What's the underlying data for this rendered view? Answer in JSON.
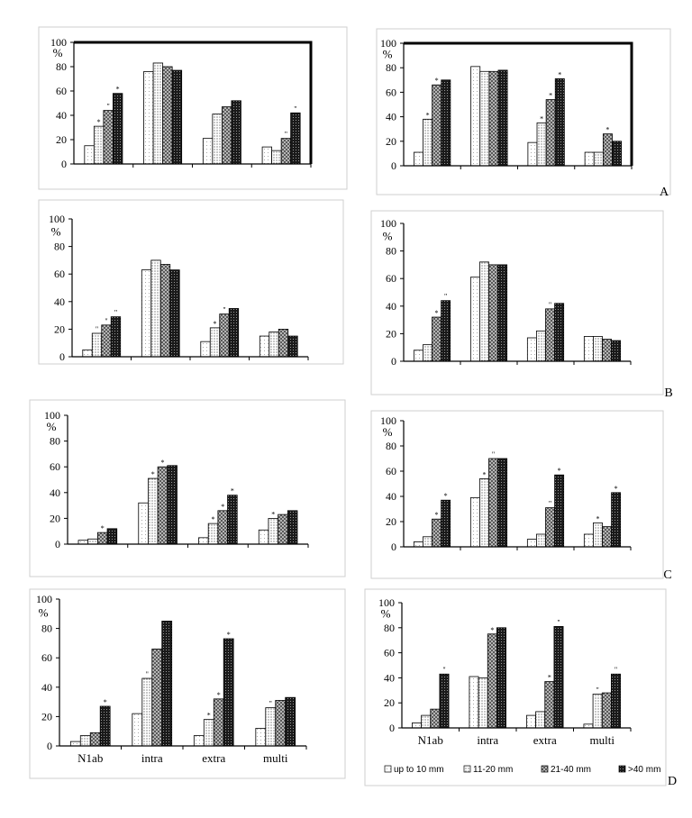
{
  "panel_labels": [
    "A",
    "B",
    "C",
    "D"
  ],
  "chart_data": [
    {
      "type": "bar",
      "panel": "A",
      "side": "left",
      "ylabel": "%",
      "ylim": [
        0,
        100
      ],
      "yticks": [
        0,
        20,
        40,
        60,
        80,
        100
      ],
      "categories": [
        "N1ab",
        "intra",
        "extra",
        "multi"
      ],
      "show_category_labels": false,
      "series": [
        {
          "name": "up to 10 mm",
          "values": [
            15,
            76,
            21,
            14
          ]
        },
        {
          "name": "11-20 mm",
          "values": [
            31,
            83,
            41,
            11
          ]
        },
        {
          "name": "21-40 mm",
          "values": [
            44,
            80,
            47,
            21
          ]
        },
        {
          "name": ">40 mm",
          "values": [
            58,
            77,
            52,
            42
          ]
        }
      ],
      "marks": [
        [
          "",
          "",
          "",
          ""
        ],
        [
          "*",
          "",
          "",
          ""
        ],
        [
          "\"",
          "",
          "",
          "\""
        ],
        [
          "*",
          "",
          "",
          "\""
        ]
      ]
    },
    {
      "type": "bar",
      "panel": "A",
      "side": "right",
      "ylabel": "%",
      "ylim": [
        0,
        100
      ],
      "yticks": [
        0,
        20,
        40,
        60,
        80,
        100
      ],
      "categories": [
        "N1ab",
        "intra",
        "extra",
        "multi"
      ],
      "show_category_labels": false,
      "series": [
        {
          "name": "up to 10 mm",
          "values": [
            11,
            81,
            19,
            11
          ]
        },
        {
          "name": "11-20 mm",
          "values": [
            38,
            77,
            35,
            11
          ]
        },
        {
          "name": "21-40 mm",
          "values": [
            66,
            77,
            54,
            26
          ]
        },
        {
          "name": ">40 mm",
          "values": [
            70,
            78,
            71,
            20
          ]
        }
      ],
      "marks": [
        [
          "",
          "",
          "",
          ""
        ],
        [
          "*",
          "",
          "*",
          ""
        ],
        [
          "*",
          "",
          "*",
          "*"
        ],
        [
          "",
          "",
          "*",
          ""
        ]
      ]
    },
    {
      "type": "bar",
      "panel": "B",
      "side": "left",
      "ylabel": "%",
      "ylim": [
        0,
        100
      ],
      "yticks": [
        0,
        20,
        40,
        60,
        80,
        100
      ],
      "categories": [
        "N1ab",
        "intra",
        "extra",
        "multi"
      ],
      "show_category_labels": false,
      "series": [
        {
          "name": "up to 10 mm",
          "values": [
            5,
            63,
            11,
            15
          ]
        },
        {
          "name": "11-20 mm",
          "values": [
            17,
            70,
            21,
            18
          ]
        },
        {
          "name": "21-40 mm",
          "values": [
            23,
            67,
            31,
            20
          ]
        },
        {
          "name": ">40 mm",
          "values": [
            29,
            63,
            35,
            15
          ]
        }
      ],
      "marks": [
        [
          "",
          "",
          "",
          ""
        ],
        [
          "\"",
          "",
          "*",
          ""
        ],
        [
          "\"",
          "",
          "\"",
          ""
        ],
        [
          "\"",
          "",
          "",
          ""
        ]
      ]
    },
    {
      "type": "bar",
      "panel": "B",
      "side": "right",
      "ylabel": "%",
      "ylim": [
        0,
        100
      ],
      "yticks": [
        0,
        20,
        40,
        60,
        80,
        100
      ],
      "categories": [
        "N1ab",
        "intra",
        "extra",
        "multi"
      ],
      "show_category_labels": false,
      "series": [
        {
          "name": "up to 10 mm",
          "values": [
            8,
            61,
            17,
            18
          ]
        },
        {
          "name": "11-20 mm",
          "values": [
            12,
            72,
            22,
            18
          ]
        },
        {
          "name": "21-40 mm",
          "values": [
            32,
            70,
            38,
            16
          ]
        },
        {
          "name": ">40 mm",
          "values": [
            44,
            70,
            42,
            15
          ]
        }
      ],
      "marks": [
        [
          "",
          "",
          "",
          ""
        ],
        [
          "",
          "",
          "",
          ""
        ],
        [
          "*",
          "",
          "\"",
          ""
        ],
        [
          "\"",
          "",
          "",
          ""
        ]
      ]
    },
    {
      "type": "bar",
      "panel": "C",
      "side": "left",
      "ylabel": "%",
      "ylim": [
        0,
        100
      ],
      "yticks": [
        0,
        20,
        40,
        60,
        80,
        100
      ],
      "categories": [
        "N1ab",
        "intra",
        "extra",
        "multi"
      ],
      "show_category_labels": false,
      "series": [
        {
          "name": "up to 10 mm",
          "values": [
            3,
            32,
            5,
            11
          ]
        },
        {
          "name": "11-20 mm",
          "values": [
            4,
            51,
            16,
            20
          ]
        },
        {
          "name": "21-40 mm",
          "values": [
            9,
            60,
            26,
            23
          ]
        },
        {
          "name": ">40 mm",
          "values": [
            12,
            61,
            38,
            26
          ]
        }
      ],
      "marks": [
        [
          "",
          "",
          "",
          ""
        ],
        [
          "",
          "*",
          "*",
          "*"
        ],
        [
          "*",
          "*",
          "*",
          ""
        ],
        [
          "",
          "",
          "*",
          ""
        ]
      ]
    },
    {
      "type": "bar",
      "panel": "C",
      "side": "right",
      "ylabel": "%",
      "ylim": [
        0,
        100
      ],
      "yticks": [
        0,
        20,
        40,
        60,
        80,
        100
      ],
      "categories": [
        "N1ab",
        "intra",
        "extra",
        "multi"
      ],
      "show_category_labels": false,
      "series": [
        {
          "name": "up to 10 mm",
          "values": [
            4,
            39,
            6,
            10
          ]
        },
        {
          "name": "11-20 mm",
          "values": [
            8,
            54,
            10,
            19
          ]
        },
        {
          "name": "21-40 mm",
          "values": [
            22,
            70,
            31,
            16
          ]
        },
        {
          "name": ">40 mm",
          "values": [
            37,
            70,
            57,
            43
          ]
        }
      ],
      "marks": [
        [
          "",
          "",
          "",
          ""
        ],
        [
          "",
          "*",
          "",
          "*"
        ],
        [
          "*",
          "\"",
          "\"",
          ""
        ],
        [
          "*",
          "",
          "*",
          "*"
        ]
      ]
    },
    {
      "type": "bar",
      "panel": "D",
      "side": "left",
      "ylabel": "%",
      "ylim": [
        0,
        100
      ],
      "yticks": [
        0,
        20,
        40,
        60,
        80,
        100
      ],
      "categories": [
        "N1ab",
        "intra",
        "extra",
        "multi"
      ],
      "show_category_labels": true,
      "series": [
        {
          "name": "up to 10 mm",
          "values": [
            3,
            22,
            7,
            12
          ]
        },
        {
          "name": "11-20 mm",
          "values": [
            7,
            46,
            18,
            26
          ]
        },
        {
          "name": "21-40 mm",
          "values": [
            9,
            66,
            32,
            31
          ]
        },
        {
          "name": ">40 mm",
          "values": [
            27,
            85,
            73,
            33
          ]
        }
      ],
      "marks": [
        [
          "",
          "",
          "",
          ""
        ],
        [
          "",
          "\"",
          "*",
          "\""
        ],
        [
          "",
          "",
          "*",
          ""
        ],
        [
          "*",
          "",
          "*",
          ""
        ]
      ]
    },
    {
      "type": "bar",
      "panel": "D",
      "side": "right",
      "ylabel": "%",
      "ylim": [
        0,
        100
      ],
      "yticks": [
        0,
        20,
        40,
        60,
        80,
        100
      ],
      "categories": [
        "N1ab",
        "intra",
        "extra",
        "multi"
      ],
      "show_category_labels": true,
      "series": [
        {
          "name": "up to 10 mm",
          "values": [
            4,
            41,
            10,
            3
          ]
        },
        {
          "name": "11-20 mm",
          "values": [
            10,
            40,
            13,
            27
          ]
        },
        {
          "name": "21-40 mm",
          "values": [
            15,
            75,
            37,
            28
          ]
        },
        {
          "name": ">40 mm",
          "values": [
            43,
            80,
            81,
            43
          ]
        }
      ],
      "marks": [
        [
          "",
          "",
          "",
          ""
        ],
        [
          "",
          "",
          "",
          "\""
        ],
        [
          "",
          "*",
          "*",
          ""
        ],
        [
          "\"",
          "",
          "\"",
          "\""
        ]
      ],
      "legend": {
        "placement": "bottom",
        "entries": [
          "up to 10 mm",
          "11-20 mm",
          "21-40 mm",
          ">40 mm"
        ]
      }
    }
  ]
}
